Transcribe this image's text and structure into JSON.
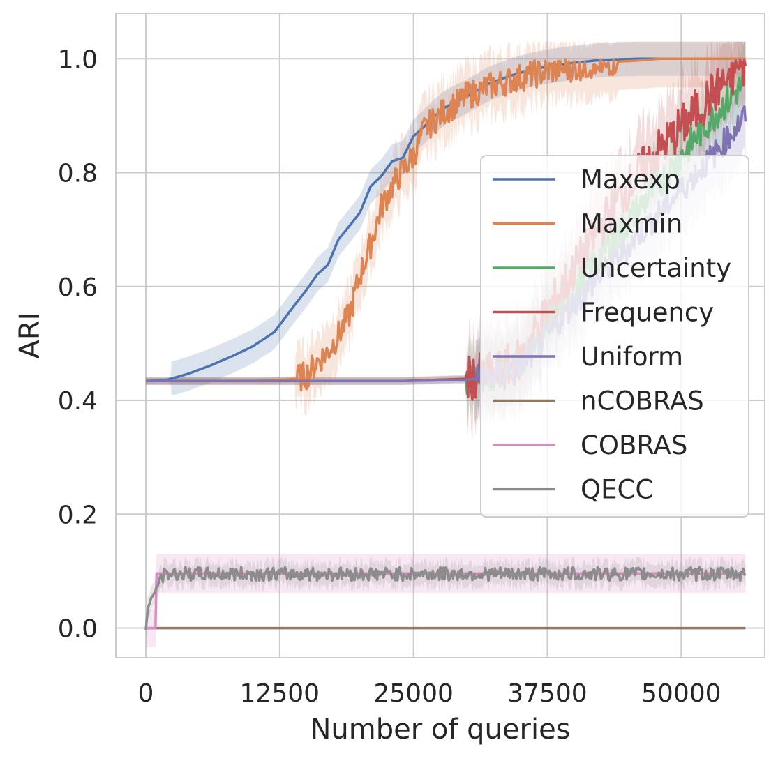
{
  "chart_data": {
    "type": "line",
    "title": "",
    "xlabel": "Number of queries",
    "ylabel": "ARI",
    "xlim": [
      -2800,
      57800
    ],
    "ylim": [
      -0.052,
      1.08
    ],
    "xticks": [
      0,
      12500,
      25000,
      37500,
      50000
    ],
    "xtick_labels": [
      "0",
      "12500",
      "25000",
      "37500",
      "50000"
    ],
    "yticks": [
      0.0,
      0.2,
      0.4,
      0.6,
      0.8,
      1.0
    ],
    "ytick_labels": [
      "0.0",
      "0.2",
      "0.4",
      "0.6",
      "0.8",
      "1.0"
    ],
    "grid": true,
    "legend_position": "center-right",
    "series": [
      {
        "name": "Maxexp",
        "color": "#4c72b0",
        "band": 0.03,
        "x": [
          0,
          2000,
          4000,
          6000,
          8000,
          10000,
          12000,
          14000,
          15000,
          16000,
          17000,
          18000,
          19000,
          20000,
          21000,
          22000,
          23000,
          24000,
          25000,
          26000,
          27000,
          28000,
          30000,
          32000,
          34000,
          36000,
          38000,
          40000,
          42000,
          44000,
          46000,
          48000,
          56000
        ],
        "y": [
          0.434,
          0.436,
          0.447,
          0.461,
          0.477,
          0.495,
          0.52,
          0.57,
          0.594,
          0.621,
          0.638,
          0.683,
          0.706,
          0.73,
          0.776,
          0.794,
          0.82,
          0.826,
          0.864,
          0.881,
          0.9,
          0.915,
          0.934,
          0.956,
          0.97,
          0.981,
          0.988,
          0.993,
          0.997,
          0.999,
          1.0,
          1.0,
          1.0
        ]
      },
      {
        "name": "Maxmin",
        "color": "#dd8452",
        "band": 0.05,
        "x": [
          0,
          10000,
          13000,
          14000,
          15000,
          16000,
          17000,
          18000,
          19000,
          20000,
          21000,
          22000,
          23000,
          24000,
          25000,
          26000,
          27000,
          28000,
          29000,
          30000,
          32000,
          34000,
          36000,
          38000,
          40000,
          42000,
          44000,
          46000,
          48000,
          56000
        ],
        "y": [
          0.434,
          0.434,
          0.436,
          0.438,
          0.444,
          0.468,
          0.485,
          0.515,
          0.55,
          0.62,
          0.674,
          0.74,
          0.776,
          0.804,
          0.83,
          0.876,
          0.893,
          0.91,
          0.92,
          0.935,
          0.951,
          0.962,
          0.972,
          0.98,
          0.985,
          0.99,
          0.995,
          0.997,
          1.0,
          1.0
        ],
        "noise": 0.025
      },
      {
        "name": "Uncertainty",
        "color": "#55a868",
        "band": 0.06,
        "x": [
          0,
          24000,
          30000,
          33000,
          35000,
          37000,
          39000,
          41000,
          44000,
          47000,
          50000,
          53000,
          56000
        ],
        "y": [
          0.434,
          0.434,
          0.438,
          0.448,
          0.47,
          0.52,
          0.57,
          0.62,
          0.69,
          0.76,
          0.83,
          0.9,
          0.96
        ],
        "noise": 0.03
      },
      {
        "name": "Frequency",
        "color": "#c44e52",
        "band": 0.07,
        "x": [
          0,
          24000,
          30000,
          33000,
          35000,
          37000,
          39000,
          41000,
          44000,
          47000,
          50000,
          53000,
          56000
        ],
        "y": [
          0.434,
          0.434,
          0.438,
          0.449,
          0.472,
          0.54,
          0.6,
          0.66,
          0.75,
          0.82,
          0.88,
          0.94,
          0.99
        ],
        "noise": 0.04
      },
      {
        "name": "Uniform",
        "color": "#8172b3",
        "band": 0.07,
        "x": [
          0,
          24000,
          30000,
          33000,
          35000,
          37000,
          39000,
          41000,
          44000,
          47000,
          50000,
          53000,
          56000
        ],
        "y": [
          0.434,
          0.434,
          0.436,
          0.444,
          0.46,
          0.5,
          0.55,
          0.59,
          0.65,
          0.71,
          0.77,
          0.83,
          0.9
        ],
        "noise": 0.025
      },
      {
        "name": "nCOBRAS",
        "color": "#937860",
        "band": 0,
        "x": [
          0,
          56000
        ],
        "y": [
          0.0,
          0.0
        ]
      },
      {
        "name": "COBRAS",
        "color": "#da8bc3",
        "band": 0.034,
        "x": [
          0,
          900,
          1000,
          56000
        ],
        "y": [
          0.0,
          0.0,
          0.096,
          0.096
        ]
      },
      {
        "name": "QECC",
        "color": "#8c8c8c",
        "band": 0.02,
        "x": [
          0,
          200,
          600,
          1000,
          1400,
          2000,
          56000
        ],
        "y": [
          0.0,
          0.035,
          0.055,
          0.07,
          0.09,
          0.095,
          0.095
        ],
        "noise": 0.012
      }
    ]
  }
}
